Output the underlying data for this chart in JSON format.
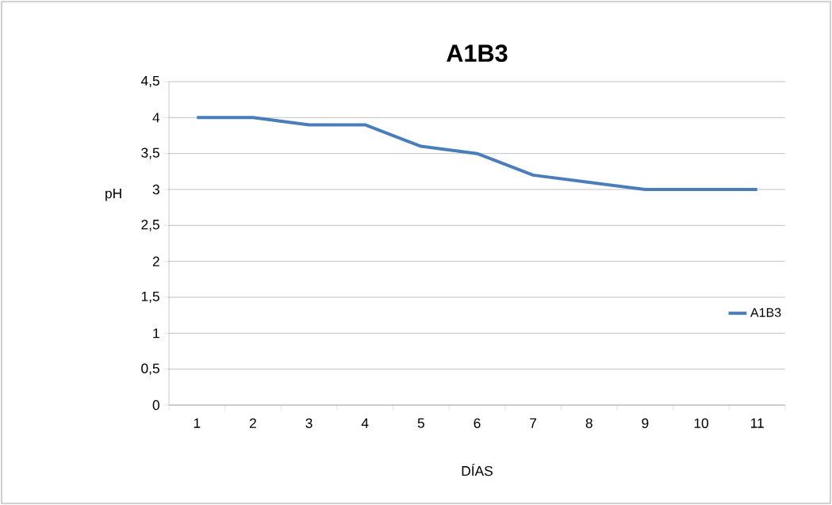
{
  "chart_data": {
    "type": "line",
    "title": "A1B3",
    "xlabel": "DÍAS",
    "ylabel": "pH",
    "categories": [
      "1",
      "2",
      "3",
      "4",
      "5",
      "6",
      "7",
      "8",
      "9",
      "10",
      "11"
    ],
    "series": [
      {
        "name": "A1B3",
        "color": "#4a7ebb",
        "values": [
          4,
          4,
          3.9,
          3.9,
          3.6,
          3.5,
          3.2,
          3.1,
          3.0,
          3.0,
          3.0
        ]
      }
    ],
    "ylim": [
      0,
      4.5
    ],
    "yticks": [
      0,
      {
        "value": 0.5,
        "label": "0,5"
      },
      1,
      {
        "value": 1.5,
        "label": "1,5"
      },
      2,
      {
        "value": 2.5,
        "label": "2,5"
      },
      3,
      {
        "value": 3.5,
        "label": "3,5"
      },
      4,
      {
        "value": 4.5,
        "label": "4,5"
      }
    ],
    "grid": "y",
    "legend": "right",
    "marker": "none",
    "line_style": "solid"
  }
}
